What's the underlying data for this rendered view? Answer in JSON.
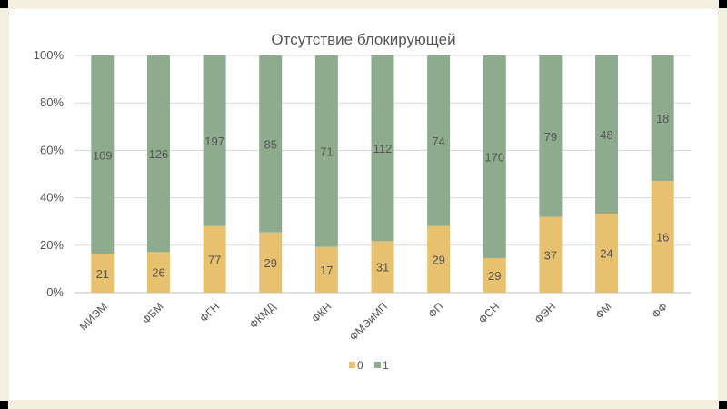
{
  "chart_data": {
    "type": "bar",
    "stacked": "percent",
    "title": "Отсутствие блокирующей",
    "categories": [
      "МИЭМ",
      "ФБМ",
      "ФГН",
      "ФКМД",
      "ФКН",
      "ФМЭиМП",
      "ФП",
      "ФСН",
      "ФЭН",
      "ФМ",
      "ФФ"
    ],
    "series": [
      {
        "name": "0",
        "color": "#e8c16f",
        "values": [
          21,
          26,
          77,
          29,
          17,
          31,
          29,
          29,
          37,
          24,
          16
        ]
      },
      {
        "name": "1",
        "color": "#8fab8e",
        "values": [
          109,
          126,
          197,
          85,
          71,
          112,
          74,
          170,
          79,
          48,
          18
        ]
      }
    ],
    "y_ticks": [
      "0%",
      "20%",
      "40%",
      "60%",
      "80%",
      "100%"
    ],
    "ylim": [
      0,
      100
    ],
    "grid": true,
    "legend_position": "bottom"
  }
}
